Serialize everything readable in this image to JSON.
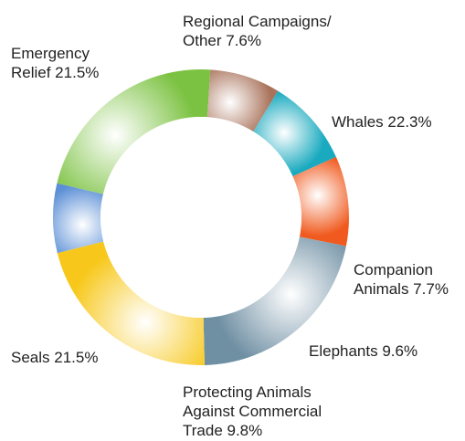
{
  "chart_data": {
    "type": "pie",
    "donut": true,
    "title": "",
    "legend": "none",
    "slices": [
      {
        "label_lines": [
          "Regional Campaigns/",
          "Other 7.6%"
        ],
        "value": 7.6,
        "color": "#5b8fd6"
      },
      {
        "label_lines": [
          "Whales 22.3%"
        ],
        "value": 22.3,
        "color": "#7cc242"
      },
      {
        "label_lines": [
          "Companion",
          "Animals 7.7%"
        ],
        "value": 7.7,
        "color": "#a9735b"
      },
      {
        "label_lines": [
          "Elephants 9.6%"
        ],
        "value": 9.6,
        "color": "#1aaabf"
      },
      {
        "label_lines": [
          "Protecting Animals",
          "Against Commercial",
          "Trade 9.8%"
        ],
        "value": 9.8,
        "color": "#f05a1e"
      },
      {
        "label_lines": [
          "Seals 21.5%"
        ],
        "value": 21.5,
        "color": "#6f8fa3"
      },
      {
        "label_lines": [
          "Emergency",
          "Relief 21.5%"
        ],
        "value": 21.5,
        "color": "#f7c81b"
      }
    ]
  }
}
